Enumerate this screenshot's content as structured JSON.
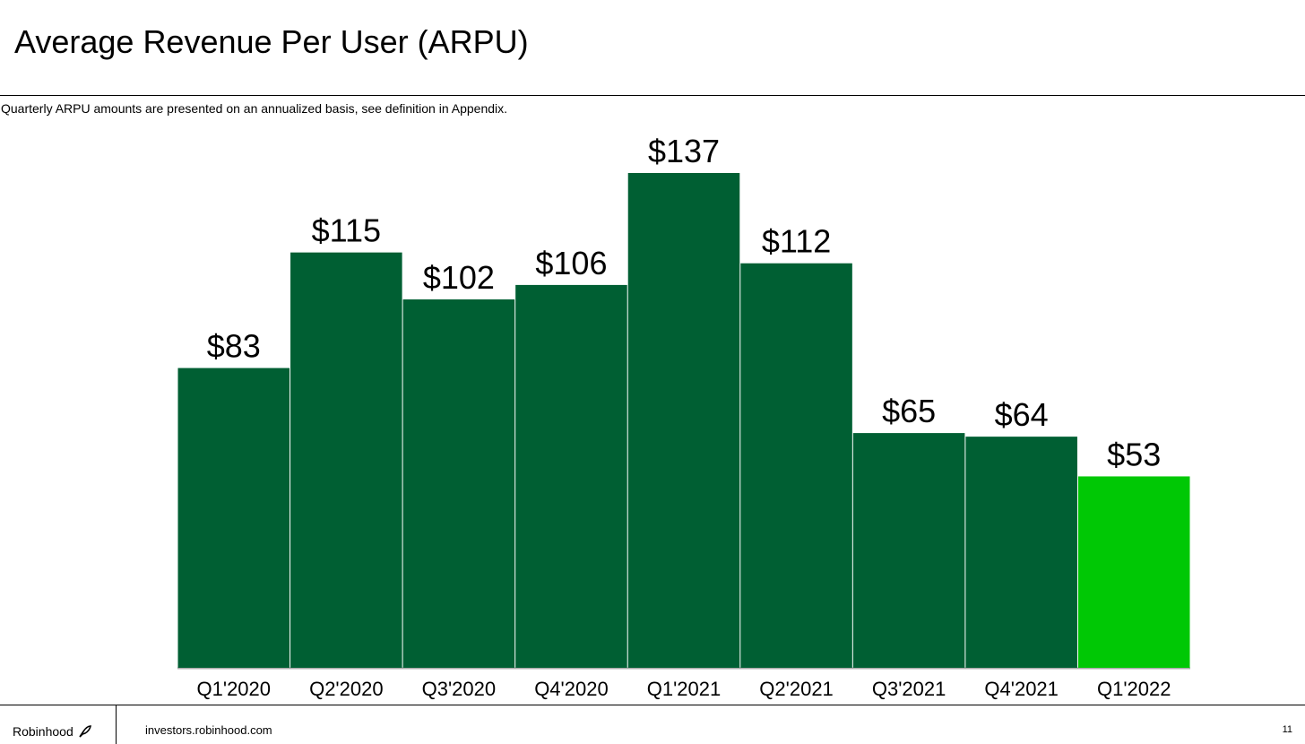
{
  "header": {
    "title": "Average Revenue Per User (ARPU)",
    "note": "Quarterly ARPU amounts are presented on an annualized basis, see definition in Appendix."
  },
  "chart_data": {
    "type": "bar",
    "categories": [
      "Q1'2020",
      "Q2'2020",
      "Q3'2020",
      "Q4'2020",
      "Q1'2021",
      "Q2'2021",
      "Q3'2021",
      "Q4'2021",
      "Q1'2022"
    ],
    "values": [
      83,
      115,
      102,
      106,
      137,
      112,
      65,
      64,
      53
    ],
    "value_labels": [
      "$83",
      "$115",
      "$102",
      "$106",
      "$137",
      "$112",
      "$65",
      "$64",
      "$53"
    ],
    "colors": [
      "#005f33",
      "#005f33",
      "#005f33",
      "#005f33",
      "#005f33",
      "#005f33",
      "#005f33",
      "#005f33",
      "#00c805"
    ]
  },
  "footer": {
    "brand": "Robinhood",
    "url": "investors.robinhood.com",
    "page": "11"
  }
}
